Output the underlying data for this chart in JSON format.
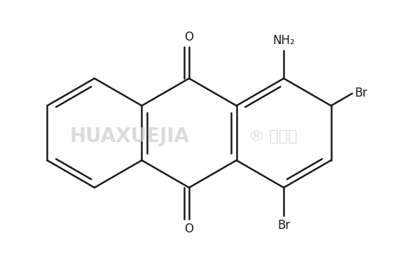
{
  "background_color": "#ffffff",
  "line_color": "#1a1a1a",
  "line_width": 1.8,
  "label_nh2": "NH₂",
  "label_br1": "Br",
  "label_br2": "Br",
  "label_o1": "O",
  "label_o2": "O",
  "font_size_labels": 12,
  "fig_width": 5.64,
  "fig_height": 4.0,
  "dpi": 100
}
